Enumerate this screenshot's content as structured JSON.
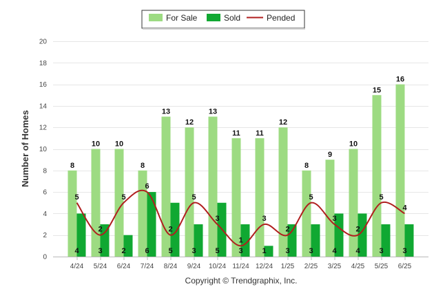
{
  "legend": {
    "items": [
      {
        "label": "For Sale",
        "color": "#9ddb82",
        "kind": "bar"
      },
      {
        "label": "Sold",
        "color": "#10a832",
        "kind": "bar"
      },
      {
        "label": "Pended",
        "color": "#b01e1e",
        "kind": "line"
      }
    ]
  },
  "footer": {
    "copyright": "Copyright © Trendgraphix, Inc."
  },
  "chart_data": {
    "type": "bar",
    "title": "",
    "xlabel": "",
    "ylabel": "Number of Homes",
    "ylim": [
      0,
      20
    ],
    "yticks": [
      0,
      2,
      4,
      6,
      8,
      10,
      12,
      14,
      16,
      18,
      20
    ],
    "grid": true,
    "legend_position": "top-center",
    "categories": [
      "4/24",
      "5/24",
      "6/24",
      "7/24",
      "8/24",
      "9/24",
      "10/24",
      "11/24",
      "12/24",
      "1/25",
      "2/25",
      "3/25",
      "4/25",
      "5/25",
      "6/25"
    ],
    "series": [
      {
        "name": "For Sale",
        "type": "bar",
        "color": "#9ddb82",
        "values": [
          8,
          10,
          10,
          8,
          13,
          12,
          13,
          11,
          11,
          12,
          8,
          9,
          10,
          15,
          16
        ]
      },
      {
        "name": "Sold",
        "type": "bar",
        "color": "#10a832",
        "values": [
          4,
          3,
          2,
          6,
          5,
          3,
          5,
          3,
          1,
          3,
          3,
          4,
          4,
          3,
          3
        ]
      },
      {
        "name": "Pended",
        "type": "line",
        "color": "#b01e1e",
        "values": [
          5,
          2,
          5,
          6,
          2,
          5,
          3,
          1,
          3,
          2,
          5,
          3,
          2,
          5,
          4
        ]
      }
    ]
  }
}
